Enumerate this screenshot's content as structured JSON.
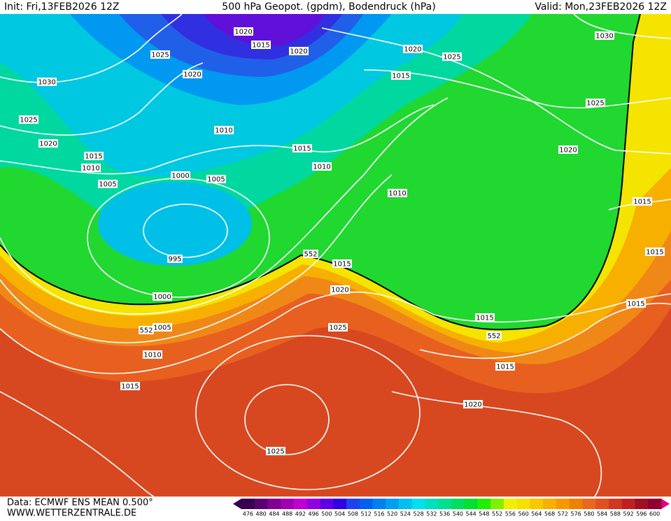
{
  "header": {
    "init": "Init: Fri,13FEB2026 12Z",
    "title": "500 hPa Geopot. (gpdm), Bodendruck (hPa)",
    "valid": "Valid: Mon,23FEB2026 12Z"
  },
  "isobar_labels": [
    "1020",
    "1015",
    "1020",
    "1025",
    "1020",
    "1030",
    "1025",
    "1020",
    "1015",
    "1010",
    "1005",
    "1000",
    "1005",
    "1010",
    "1015",
    "1010",
    "1020",
    "1025",
    "1015",
    "1030",
    "1025",
    "1020",
    "1010",
    "1015",
    "1015",
    "995",
    "552",
    "1015",
    "1020",
    "1000",
    "552",
    "1005",
    "1025",
    "1015",
    "552",
    "1015",
    "1010",
    "1015",
    "1015",
    "1020",
    "1025"
  ],
  "legend": {
    "labels": [
      476,
      480,
      484,
      488,
      492,
      496,
      500,
      504,
      508,
      512,
      516,
      520,
      524,
      528,
      532,
      536,
      540,
      544,
      548,
      552,
      556,
      560,
      564,
      568,
      572,
      576,
      580,
      584,
      588,
      592,
      596,
      600
    ],
    "colors": [
      "#3a0050",
      "#5a0070",
      "#800090",
      "#a000b0",
      "#c000d0",
      "#9000e0",
      "#6000e0",
      "#3000e0",
      "#2040f0",
      "#0060f0",
      "#0080f0",
      "#00a0f0",
      "#00c0f0",
      "#00e0f0",
      "#00e0c0",
      "#00e090",
      "#00e060",
      "#00e030",
      "#20f000",
      "#80f000",
      "#f0f000",
      "#f8e000",
      "#f8c800",
      "#f8b000",
      "#f89800",
      "#f08000",
      "#e86820",
      "#e05020",
      "#d03820",
      "#c02020",
      "#a01020",
      "#900030"
    ]
  },
  "footer": {
    "data": "Data: ECMWF ENS MEAN 0.500°",
    "site": "WWW.WETTERZENTRALE.DE"
  }
}
